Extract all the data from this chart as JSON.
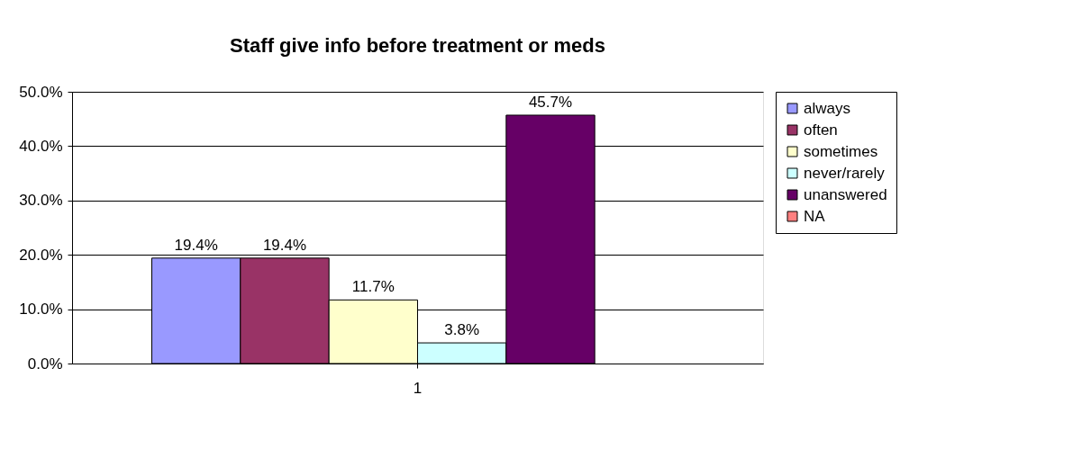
{
  "chart_data": {
    "type": "bar",
    "title": "Staff give info before treatment or meds",
    "categories": [
      "1"
    ],
    "series": [
      {
        "name": "always",
        "color": "#9999ff",
        "values": [
          19.4
        ],
        "value_labels": [
          "19.4%"
        ]
      },
      {
        "name": "often",
        "color": "#993366",
        "values": [
          19.4
        ],
        "value_labels": [
          "19.4%"
        ]
      },
      {
        "name": "sometimes",
        "color": "#ffffcc",
        "values": [
          11.7
        ],
        "value_labels": [
          "11.7%"
        ]
      },
      {
        "name": "never/rarely",
        "color": "#ccffff",
        "values": [
          3.8
        ],
        "value_labels": [
          "3.8%"
        ]
      },
      {
        "name": "unanswered",
        "color": "#660066",
        "values": [
          45.7
        ],
        "value_labels": [
          "45.7%"
        ]
      },
      {
        "name": "NA",
        "color": "#ff8080",
        "values": [
          null
        ],
        "value_labels": [
          null
        ]
      }
    ],
    "ylim": [
      0,
      50
    ],
    "yticks": [
      {
        "value": 0,
        "label": "0.0%"
      },
      {
        "value": 10,
        "label": "10.0%"
      },
      {
        "value": 20,
        "label": "20.0%"
      },
      {
        "value": 30,
        "label": "30.0%"
      },
      {
        "value": 40,
        "label": "40.0%"
      },
      {
        "value": 50,
        "label": "50.0%"
      }
    ],
    "grid": "y",
    "legend": "right"
  }
}
